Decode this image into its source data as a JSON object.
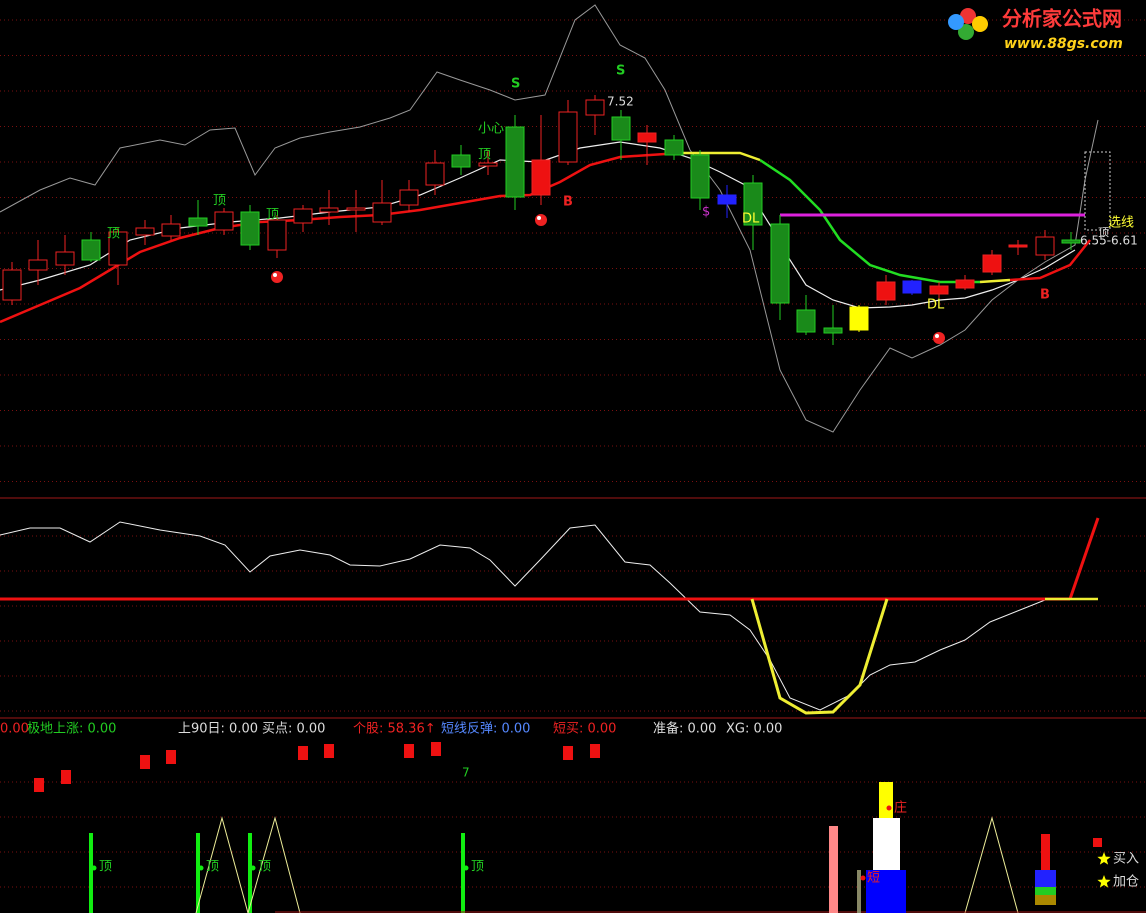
{
  "header": {
    "logo": "分析家公式网",
    "url": "www.88gs.com"
  },
  "main_panel": {
    "annotations": [
      "S",
      "S",
      "7.52",
      "小心",
      "顶",
      "顶",
      "顶",
      "顶",
      "顶",
      "B",
      "B",
      "$",
      "DL",
      "DL",
      "选线",
      "6.55-6.61"
    ]
  },
  "indicator_bar": {
    "items": [
      "0.00",
      "极地上涨: 0.00",
      "上90日: 0.00",
      "买点: 0.00",
      "个股: 58.36↑",
      "短线反弹: 0.00",
      "短买: 0.00",
      "准备: 0.00",
      "XG: 0.00"
    ]
  },
  "bottom_panel": {
    "annotations": [
      "7",
      "顶",
      "顶",
      "顶",
      "顶",
      "庄",
      "短"
    ],
    "legend": [
      "买入",
      "加仓"
    ]
  }
}
